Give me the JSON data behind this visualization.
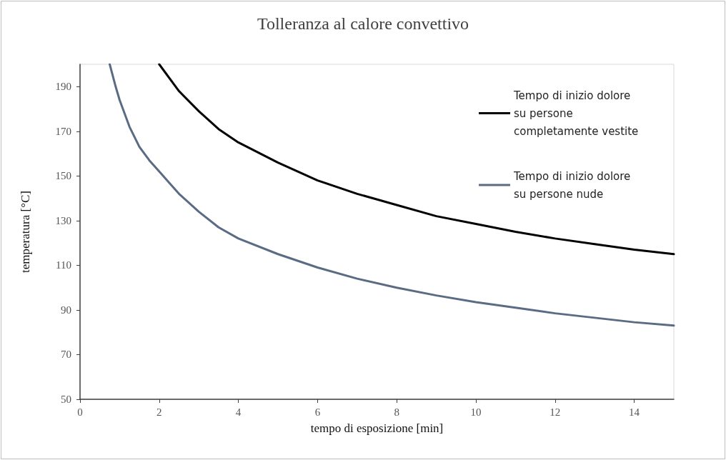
{
  "chart_data": {
    "type": "line",
    "title": "Tolleranza al calore convettivo",
    "xlabel": "tempo di esposizione [min]",
    "ylabel": "temperatura [°C]",
    "xlim": [
      0,
      15
    ],
    "xticks": [
      0,
      2,
      4,
      6,
      8,
      10,
      12,
      14
    ],
    "ylim": [
      50,
      200
    ],
    "yticks": [
      50,
      70,
      90,
      110,
      130,
      150,
      170,
      190
    ],
    "grid": false,
    "legend": "top right",
    "marker": "none",
    "line_style": "solid",
    "series": [
      {
        "name": "Tempo di inizio dolore su persone completamente vestite",
        "color": "#000000",
        "x": [
          2,
          2.5,
          3,
          3.5,
          4,
          5,
          6,
          7,
          8,
          9,
          10,
          11,
          12,
          13,
          14,
          15
        ],
        "values": [
          200,
          188,
          179,
          171,
          165,
          156,
          148,
          142,
          137,
          132,
          128.5,
          125,
          122,
          119.5,
          117,
          115
        ]
      },
      {
        "name": "Tempo di inizio dolore su persone nude",
        "color": "#5a6b84",
        "x": [
          0.75,
          0.9,
          1,
          1.25,
          1.5,
          1.75,
          2,
          2.5,
          3,
          3.5,
          4,
          5,
          6,
          7,
          8,
          9,
          10,
          11,
          12,
          13,
          14,
          15
        ],
        "values": [
          200,
          190,
          184,
          172,
          163,
          157,
          152,
          142,
          134,
          127,
          122,
          115,
          109,
          104,
          100,
          96.5,
          93.5,
          91,
          88.5,
          86.5,
          84.5,
          83
        ]
      }
    ]
  }
}
